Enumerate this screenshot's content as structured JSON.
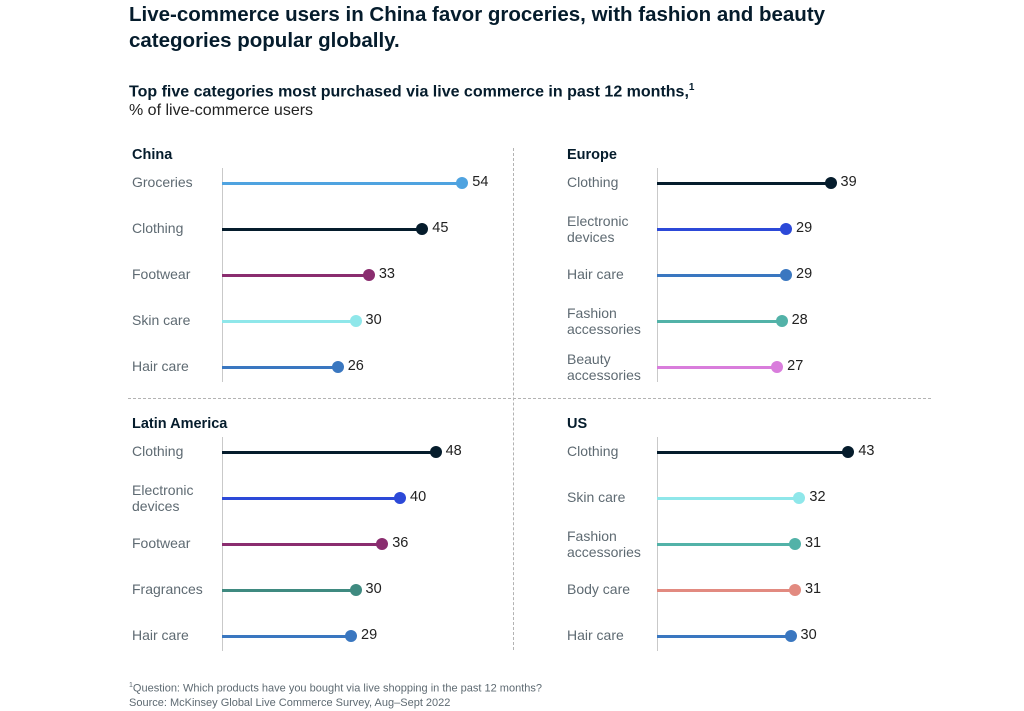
{
  "header": {
    "title": "Live-commerce users in China favor groceries, with fashion and beauty categories popular globally.",
    "subtitle": "Top five categories most purchased via live commerce in past 12 months,",
    "subtitle_footnote_mark": "1",
    "unit": "% of live-commerce users"
  },
  "footer": {
    "footnote_mark": "1",
    "question": "Question: Which products have you bought via live shopping in the past 12 months?",
    "source": "Source: McKinsey Global Live Commerce Survey, Aug–Sept 2022"
  },
  "chart_data": [
    {
      "type": "bar",
      "title": "China",
      "categories": [
        "Groceries",
        "Clothing",
        "Footwear",
        "Skin care",
        "Hair care"
      ],
      "values": [
        54,
        45,
        33,
        30,
        26
      ],
      "colors": [
        "#4fa3e0",
        "#051c2c",
        "#8a2d6f",
        "#8fe7ea",
        "#3a77c0"
      ],
      "xlim": [
        0,
        60
      ]
    },
    {
      "type": "bar",
      "title": "Europe",
      "categories": [
        "Clothing",
        "Electronic devices",
        "Hair care",
        "Fashion accessories",
        "Beauty accessories"
      ],
      "values": [
        39,
        29,
        29,
        28,
        27
      ],
      "colors": [
        "#051c2c",
        "#2c49d8",
        "#3a77c0",
        "#52b2a8",
        "#d97ddc"
      ],
      "xlim": [
        0,
        60
      ]
    },
    {
      "type": "bar",
      "title": "Latin America",
      "categories": [
        "Clothing",
        "Electronic devices",
        "Footwear",
        "Fragrances",
        "Hair care"
      ],
      "values": [
        48,
        40,
        36,
        30,
        29
      ],
      "colors": [
        "#051c2c",
        "#2c49d8",
        "#8a2d6f",
        "#3f8a80",
        "#3a77c0"
      ],
      "xlim": [
        0,
        60
      ]
    },
    {
      "type": "bar",
      "title": "US",
      "categories": [
        "Clothing",
        "Skin care",
        "Fashion accessories",
        "Body care",
        "Hair care"
      ],
      "values": [
        43,
        32,
        31,
        31,
        30
      ],
      "colors": [
        "#051c2c",
        "#8fe7ea",
        "#52b2a8",
        "#e28a80",
        "#3a77c0"
      ],
      "xlim": [
        0,
        60
      ]
    }
  ]
}
